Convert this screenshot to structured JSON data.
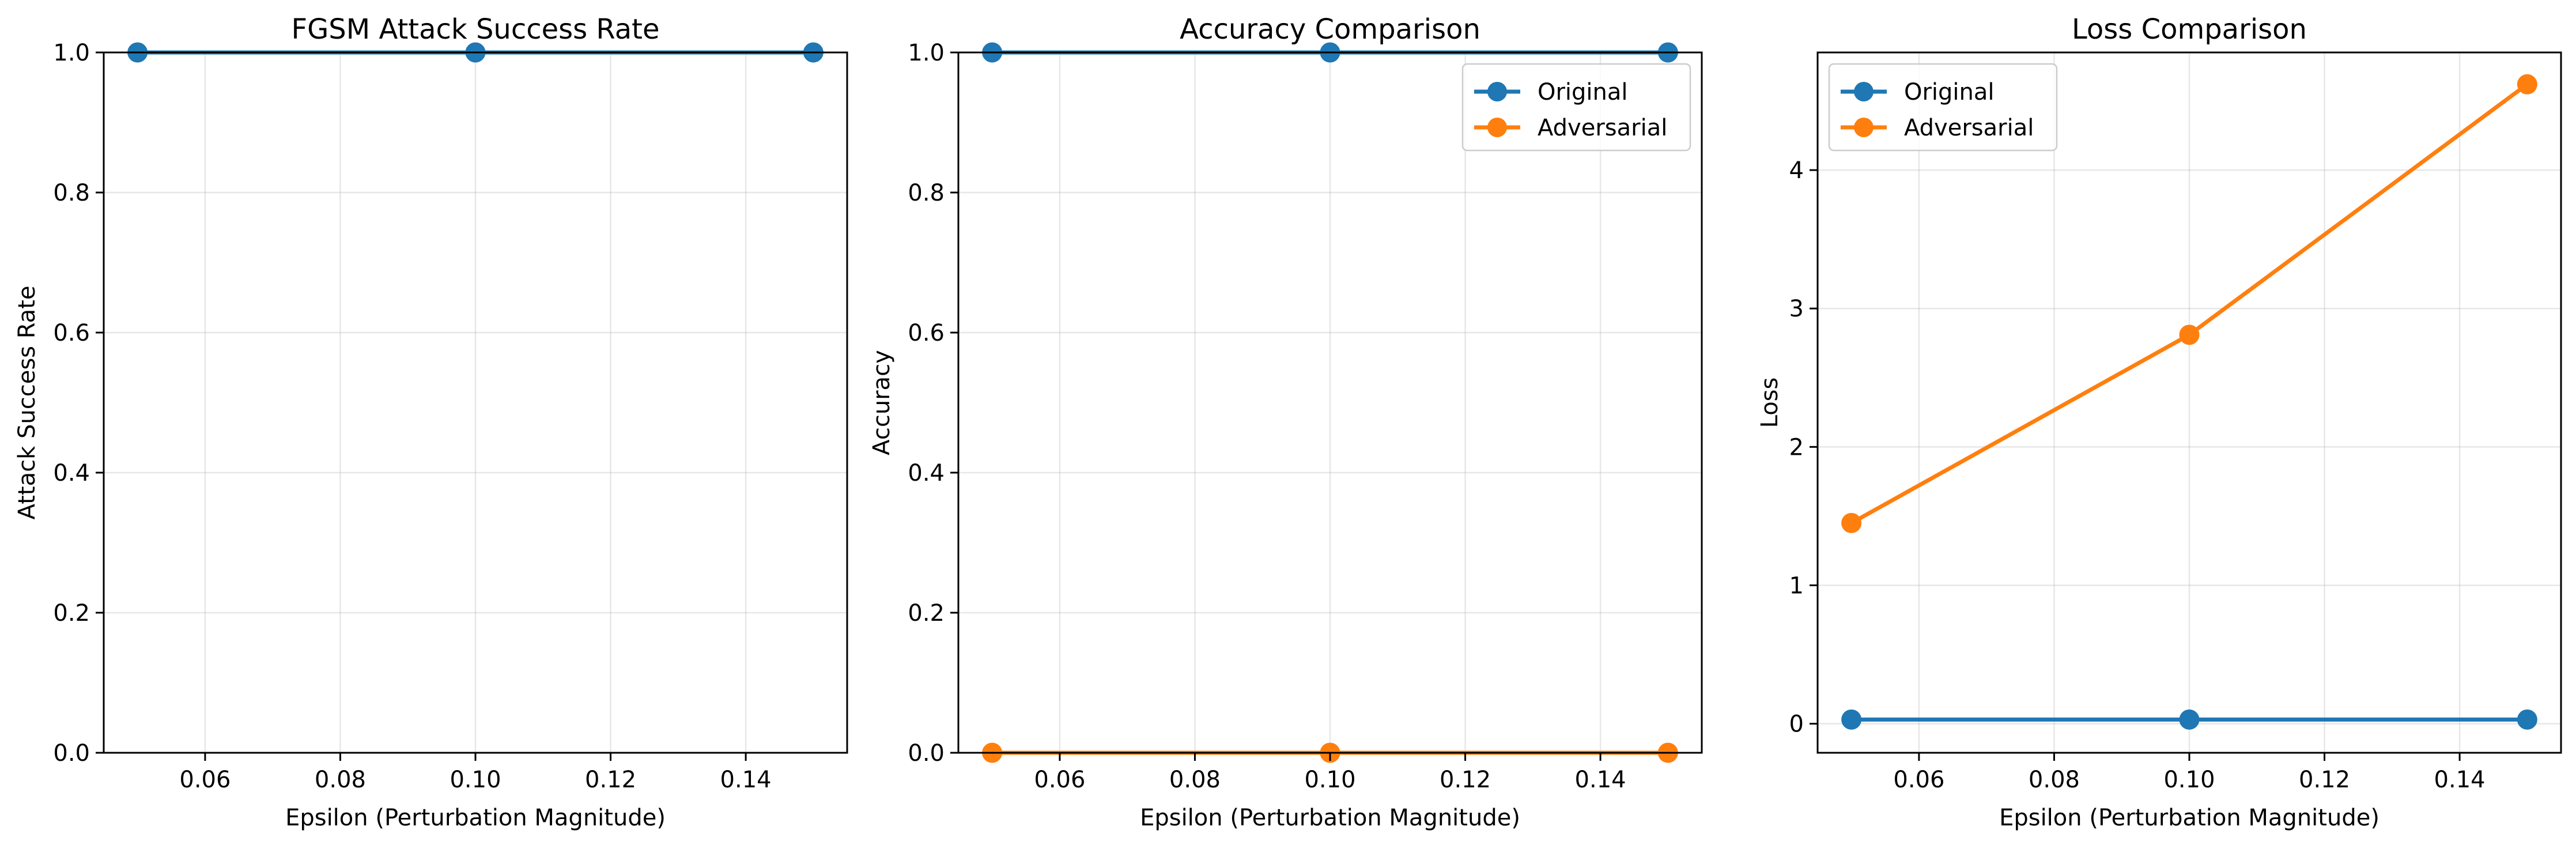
{
  "chart_data": [
    {
      "type": "line",
      "title": "FGSM Attack Success Rate",
      "xlabel": "Epsilon (Perturbation Magnitude)",
      "ylabel": "Attack Success Rate",
      "xlim": [
        0.045,
        0.155
      ],
      "ylim": [
        0.0,
        1.0
      ],
      "x_ticks": [
        0.06,
        0.08,
        0.1,
        0.12,
        0.14
      ],
      "x_tick_labels": [
        "0.06",
        "0.08",
        "0.10",
        "0.12",
        "0.14"
      ],
      "y_ticks": [
        0.0,
        0.2,
        0.4,
        0.6,
        0.8,
        1.0
      ],
      "y_tick_labels": [
        "0.0",
        "0.2",
        "0.4",
        "0.6",
        "0.8",
        "1.0"
      ],
      "grid": true,
      "legend": null,
      "x": [
        0.05,
        0.1,
        0.15
      ],
      "series": [
        {
          "name": "",
          "values": [
            1.0,
            1.0,
            1.0
          ],
          "color": "#1f77b4"
        }
      ]
    },
    {
      "type": "line",
      "title": "Accuracy Comparison",
      "xlabel": "Epsilon (Perturbation Magnitude)",
      "ylabel": "Accuracy",
      "xlim": [
        0.045,
        0.155
      ],
      "ylim": [
        0.0,
        1.0
      ],
      "x_ticks": [
        0.06,
        0.08,
        0.1,
        0.12,
        0.14
      ],
      "x_tick_labels": [
        "0.06",
        "0.08",
        "0.10",
        "0.12",
        "0.14"
      ],
      "y_ticks": [
        0.0,
        0.2,
        0.4,
        0.6,
        0.8,
        1.0
      ],
      "y_tick_labels": [
        "0.0",
        "0.2",
        "0.4",
        "0.6",
        "0.8",
        "1.0"
      ],
      "grid": true,
      "legend": "top-right",
      "x": [
        0.05,
        0.1,
        0.15
      ],
      "series": [
        {
          "name": "Original",
          "values": [
            1.0,
            1.0,
            1.0
          ],
          "color": "#1f77b4"
        },
        {
          "name": "Adversarial",
          "values": [
            0.0,
            0.0,
            0.0
          ],
          "color": "#ff7f0e"
        }
      ]
    },
    {
      "type": "line",
      "title": "Loss Comparison",
      "xlabel": "Epsilon (Perturbation Magnitude)",
      "ylabel": "Loss",
      "xlim": [
        0.045,
        0.155
      ],
      "ylim": [
        -0.21,
        4.85
      ],
      "x_ticks": [
        0.06,
        0.08,
        0.1,
        0.12,
        0.14
      ],
      "x_tick_labels": [
        "0.06",
        "0.08",
        "0.10",
        "0.12",
        "0.14"
      ],
      "y_ticks": [
        0,
        1,
        2,
        3,
        4
      ],
      "y_tick_labels": [
        "0",
        "1",
        "2",
        "3",
        "4"
      ],
      "grid": true,
      "legend": "top-left",
      "x": [
        0.05,
        0.1,
        0.15
      ],
      "series": [
        {
          "name": "Original",
          "values": [
            0.03,
            0.03,
            0.03
          ],
          "color": "#1f77b4"
        },
        {
          "name": "Adversarial",
          "values": [
            1.45,
            2.81,
            4.62
          ],
          "color": "#ff7f0e"
        }
      ]
    }
  ]
}
